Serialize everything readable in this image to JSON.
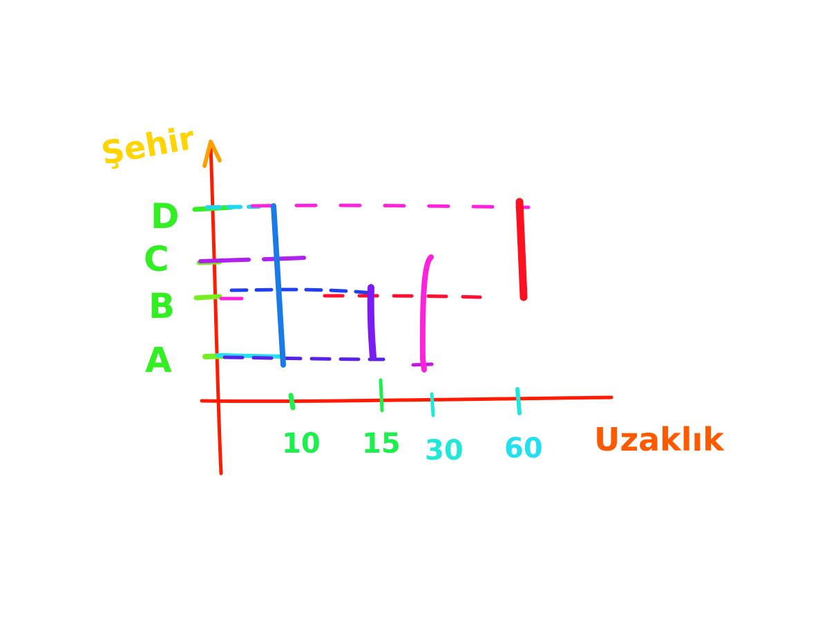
{
  "diagram": {
    "y_axis_label": "Şehir",
    "x_axis_label": "Uzaklık",
    "y_labels": [
      "D",
      "C",
      "B",
      "A"
    ],
    "x_ticks": [
      "10",
      "15",
      "30",
      "60"
    ],
    "colors": {
      "axis": "#ff1a00",
      "y_axis_label": "#ffd400",
      "x_axis_label_start": "#ff3300",
      "x_axis_label_end": "#ffa000",
      "city_labels": "#33ee22",
      "tick_10_15": "#1cf04c",
      "tick_30_60": "#1fe8d8",
      "blue": "#1a7ae8",
      "dark_blue": "#1f3ff0",
      "violet": "#7b1cf2",
      "magenta": "#ff22dd",
      "red": "#ff1020",
      "cyan": "#22e0f0",
      "purple": "#b020f0",
      "lime": "#77ee22"
    }
  }
}
